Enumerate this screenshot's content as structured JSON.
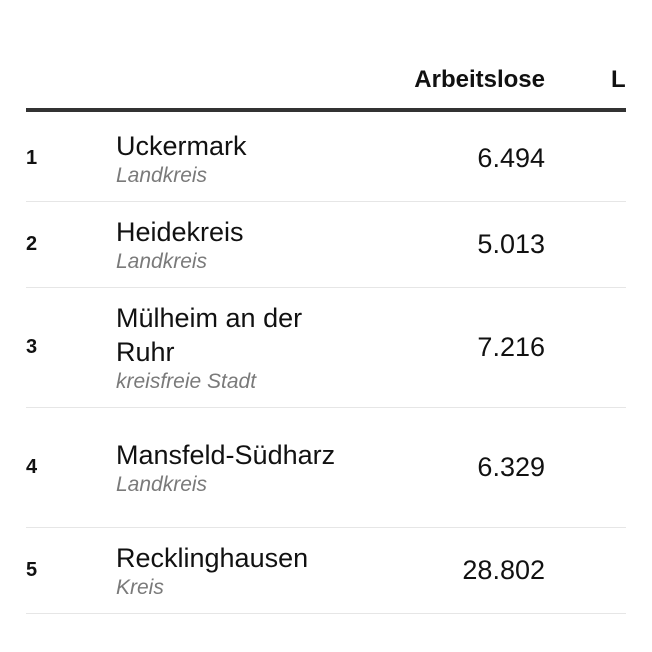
{
  "table": {
    "headers": {
      "rank": "",
      "district": "",
      "unemployed": "Arbeitslose",
      "next_column_partial": "L"
    },
    "rows": [
      {
        "rank": "1",
        "name": "Uckermark",
        "kind": "Landkreis",
        "value": "6.494"
      },
      {
        "rank": "2",
        "name": "Heidekreis",
        "kind": "Landkreis",
        "value": "5.013"
      },
      {
        "rank": "3",
        "name": "Mülheim an der Ruhr",
        "kind": "kreisfreie Stadt",
        "value": "7.216"
      },
      {
        "rank": "4",
        "name": "Mansfeld-Südharz",
        "kind": "Landkreis",
        "value": "6.329"
      },
      {
        "rank": "5",
        "name": "Recklinghausen",
        "kind": "Kreis",
        "value": "28.802"
      }
    ]
  }
}
